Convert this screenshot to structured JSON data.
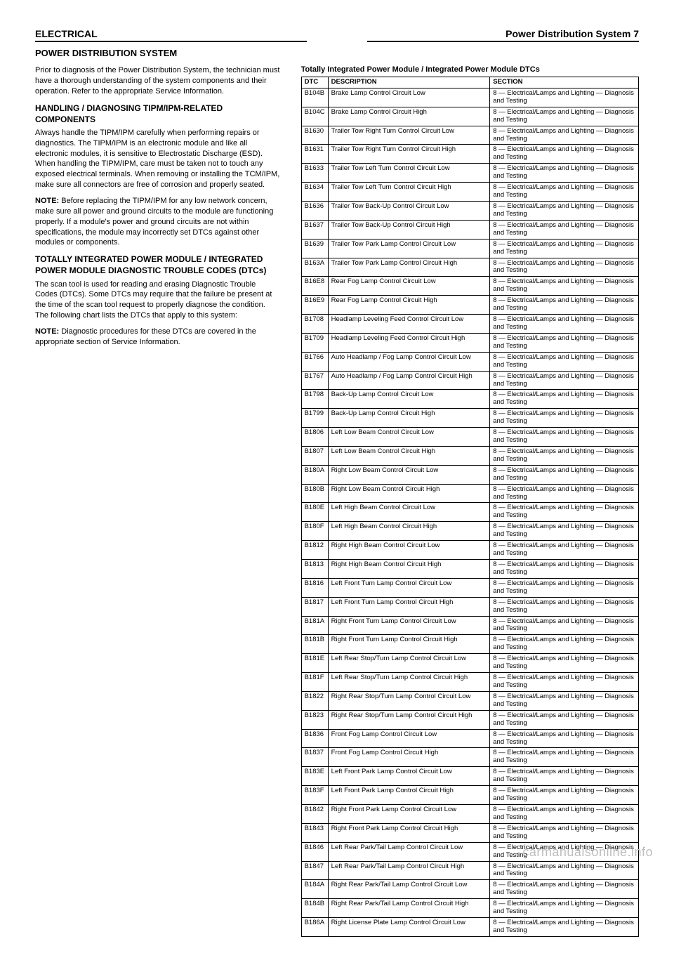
{
  "header": {
    "left": "ELECTRICAL",
    "right": "Power Distribution System  7"
  },
  "subheader": "POWER DISTRIBUTION SYSTEM",
  "left": {
    "p1": "Prior to diagnosis of the Power Distribution System, the technician must have a thorough understanding of the system components and their operation. Refer to the appropriate Service Information.",
    "h1": "HANDLING / DIAGNOSING TIPM/IPM-RELATED COMPONENTS",
    "p2": "Always handle the TIPM/IPM carefully when performing repairs or diagnostics. The TIPM/IPM is an electronic module and like all electronic modules, it is sensitive to Electrostatic Discharge (ESD). When handling the TIPM/IPM, care must be taken not to touch any exposed electrical terminals. When removing or installing the TCM/IPM, make sure all connectors are free of corrosion and properly seated.",
    "notelabel": "NOTE:",
    "note1": "Before replacing the TIPM/IPM for any low network concern, make sure all power and ground circuits to the module are functioning properly. If a module's power and ground circuits are not within specifications, the module may incorrectly set DTCs against other modules or components.",
    "h2": "TOTALLY INTEGRATED POWER MODULE / INTEGRATED POWER MODULE DIAGNOSTIC TROUBLE CODES (DTCs)",
    "p3": "The scan tool is used for reading and erasing Diagnostic Trouble Codes (DTCs). Some DTCs may require that the failure be present at the time of the scan tool request to properly diagnose the condition. The following chart lists the DTCs that apply to this system:",
    "note2": "Diagnostic procedures for these DTCs are covered in the appropriate section of Service Information."
  },
  "table": {
    "title": "Totally Integrated Power Module / Integrated Power Module DTCs",
    "columns": [
      "DTC",
      "DESCRIPTION",
      "SECTION"
    ],
    "rows": [
      [
        "B104B",
        "Brake Lamp Control Circuit Low",
        "8 — Electrical/Lamps and Lighting — Diagnosis and Testing"
      ],
      [
        "B104C",
        "Brake Lamp Control Circuit High",
        "8 — Electrical/Lamps and Lighting — Diagnosis and Testing"
      ],
      [
        "B1630",
        "Trailer Tow Right Turn Control Circuit Low",
        "8 — Electrical/Lamps and Lighting — Diagnosis and Testing"
      ],
      [
        "B1631",
        "Trailer Tow Right Turn Control Circuit High",
        "8 — Electrical/Lamps and Lighting — Diagnosis and Testing"
      ],
      [
        "B1633",
        "Trailer Tow Left Turn Control Circuit Low",
        "8 — Electrical/Lamps and Lighting — Diagnosis and Testing"
      ],
      [
        "B1634",
        "Trailer Tow Left Turn Control Circuit High",
        "8 — Electrical/Lamps and Lighting — Diagnosis and Testing"
      ],
      [
        "B1636",
        "Trailer Tow Back-Up Control Circuit Low",
        "8 — Electrical/Lamps and Lighting — Diagnosis and Testing"
      ],
      [
        "B1637",
        "Trailer Tow Back-Up Control Circuit High",
        "8 — Electrical/Lamps and Lighting — Diagnosis and Testing"
      ],
      [
        "B1639",
        "Trailer Tow Park Lamp Control Circuit Low",
        "8 — Electrical/Lamps and Lighting — Diagnosis and Testing"
      ],
      [
        "B163A",
        "Trailer Tow Park Lamp Control Circuit High",
        "8 — Electrical/Lamps and Lighting — Diagnosis and Testing"
      ],
      [
        "B16E8",
        "Rear Fog Lamp Control Circuit Low",
        "8 — Electrical/Lamps and Lighting — Diagnosis and Testing"
      ],
      [
        "B16E9",
        "Rear Fog Lamp Control Circuit High",
        "8 — Electrical/Lamps and Lighting — Diagnosis and Testing"
      ],
      [
        "B1708",
        "Headlamp Leveling Feed Control Circuit Low",
        "8 — Electrical/Lamps and Lighting — Diagnosis and Testing"
      ],
      [
        "B1709",
        "Headlamp Leveling Feed Control Circuit High",
        "8 — Electrical/Lamps and Lighting — Diagnosis and Testing"
      ],
      [
        "B1766",
        "Auto Headlamp / Fog Lamp Control Circuit Low",
        "8 — Electrical/Lamps and Lighting — Diagnosis and Testing"
      ],
      [
        "B1767",
        "Auto Headlamp / Fog Lamp Control Circuit High",
        "8 — Electrical/Lamps and Lighting — Diagnosis and Testing"
      ],
      [
        "B1798",
        "Back-Up Lamp Control Circuit Low",
        "8 — Electrical/Lamps and Lighting — Diagnosis and Testing"
      ],
      [
        "B1799",
        "Back-Up Lamp Control Circuit High",
        "8 — Electrical/Lamps and Lighting — Diagnosis and Testing"
      ],
      [
        "B1806",
        "Left Low Beam Control Circuit Low",
        "8 — Electrical/Lamps and Lighting — Diagnosis and Testing"
      ],
      [
        "B1807",
        "Left Low Beam Control Circuit High",
        "8 — Electrical/Lamps and Lighting — Diagnosis and Testing"
      ],
      [
        "B180A",
        "Right Low Beam Control Circuit Low",
        "8 — Electrical/Lamps and Lighting — Diagnosis and Testing"
      ],
      [
        "B180B",
        "Right Low Beam Control Circuit High",
        "8 — Electrical/Lamps and Lighting — Diagnosis and Testing"
      ],
      [
        "B180E",
        "Left High Beam Control Circuit Low",
        "8 — Electrical/Lamps and Lighting — Diagnosis and Testing"
      ],
      [
        "B180F",
        "Left High Beam Control Circuit High",
        "8 — Electrical/Lamps and Lighting — Diagnosis and Testing"
      ],
      [
        "B1812",
        "Right High Beam Control Circuit Low",
        "8 — Electrical/Lamps and Lighting — Diagnosis and Testing"
      ],
      [
        "B1813",
        "Right High Beam Control Circuit High",
        "8 — Electrical/Lamps and Lighting — Diagnosis and Testing"
      ],
      [
        "B1816",
        "Left Front Turn Lamp Control Circuit Low",
        "8 — Electrical/Lamps and Lighting — Diagnosis and Testing"
      ],
      [
        "B1817",
        "Left Front Turn Lamp Control Circuit High",
        "8 — Electrical/Lamps and Lighting — Diagnosis and Testing"
      ],
      [
        "B181A",
        "Right Front Turn Lamp Control Circuit Low",
        "8 — Electrical/Lamps and Lighting — Diagnosis and Testing"
      ],
      [
        "B181B",
        "Right Front Turn Lamp Control Circuit High",
        "8 — Electrical/Lamps and Lighting — Diagnosis and Testing"
      ],
      [
        "B181E",
        "Left Rear Stop/Turn Lamp Control Circuit Low",
        "8 — Electrical/Lamps and Lighting — Diagnosis and Testing"
      ],
      [
        "B181F",
        "Left Rear Stop/Turn Lamp Control Circuit High",
        "8 — Electrical/Lamps and Lighting — Diagnosis and Testing"
      ],
      [
        "B1822",
        "Right Rear Stop/Turn Lamp Control Circuit Low",
        "8 — Electrical/Lamps and Lighting — Diagnosis and Testing"
      ],
      [
        "B1823",
        "Right Rear Stop/Turn Lamp Control Circuit High",
        "8 — Electrical/Lamps and Lighting — Diagnosis and Testing"
      ],
      [
        "B1836",
        "Front Fog Lamp Control Circuit Low",
        "8 — Electrical/Lamps and Lighting — Diagnosis and Testing"
      ],
      [
        "B1837",
        "Front Fog Lamp Control Circuit High",
        "8 — Electrical/Lamps and Lighting — Diagnosis and Testing"
      ],
      [
        "B183E",
        "Left Front Park Lamp Control Circuit Low",
        "8 — Electrical/Lamps and Lighting — Diagnosis and Testing"
      ],
      [
        "B183F",
        "Left Front Park Lamp Control Circuit High",
        "8 — Electrical/Lamps and Lighting — Diagnosis and Testing"
      ],
      [
        "B1842",
        "Right Front Park Lamp Control Circuit Low",
        "8 — Electrical/Lamps and Lighting — Diagnosis and Testing"
      ],
      [
        "B1843",
        "Right Front Park Lamp Control Circuit High",
        "8 — Electrical/Lamps and Lighting — Diagnosis and Testing"
      ],
      [
        "B1846",
        "Left Rear Park/Tail Lamp Control Circuit Low",
        "8 — Electrical/Lamps and Lighting — Diagnosis and Testing"
      ],
      [
        "B1847",
        "Left Rear Park/Tail Lamp Control Circuit High",
        "8 — Electrical/Lamps and Lighting — Diagnosis and Testing"
      ],
      [
        "B184A",
        "Right Rear Park/Tail Lamp Control Circuit Low",
        "8 — Electrical/Lamps and Lighting — Diagnosis and Testing"
      ],
      [
        "B184B",
        "Right Rear Park/Tail Lamp Control Circuit High",
        "8 — Electrical/Lamps and Lighting — Diagnosis and Testing"
      ],
      [
        "B186A",
        "Right License Plate Lamp Control Circuit Low",
        "8 — Electrical/Lamps and Lighting — Diagnosis and Testing"
      ]
    ]
  },
  "watermark": "carmanualsonline.info"
}
